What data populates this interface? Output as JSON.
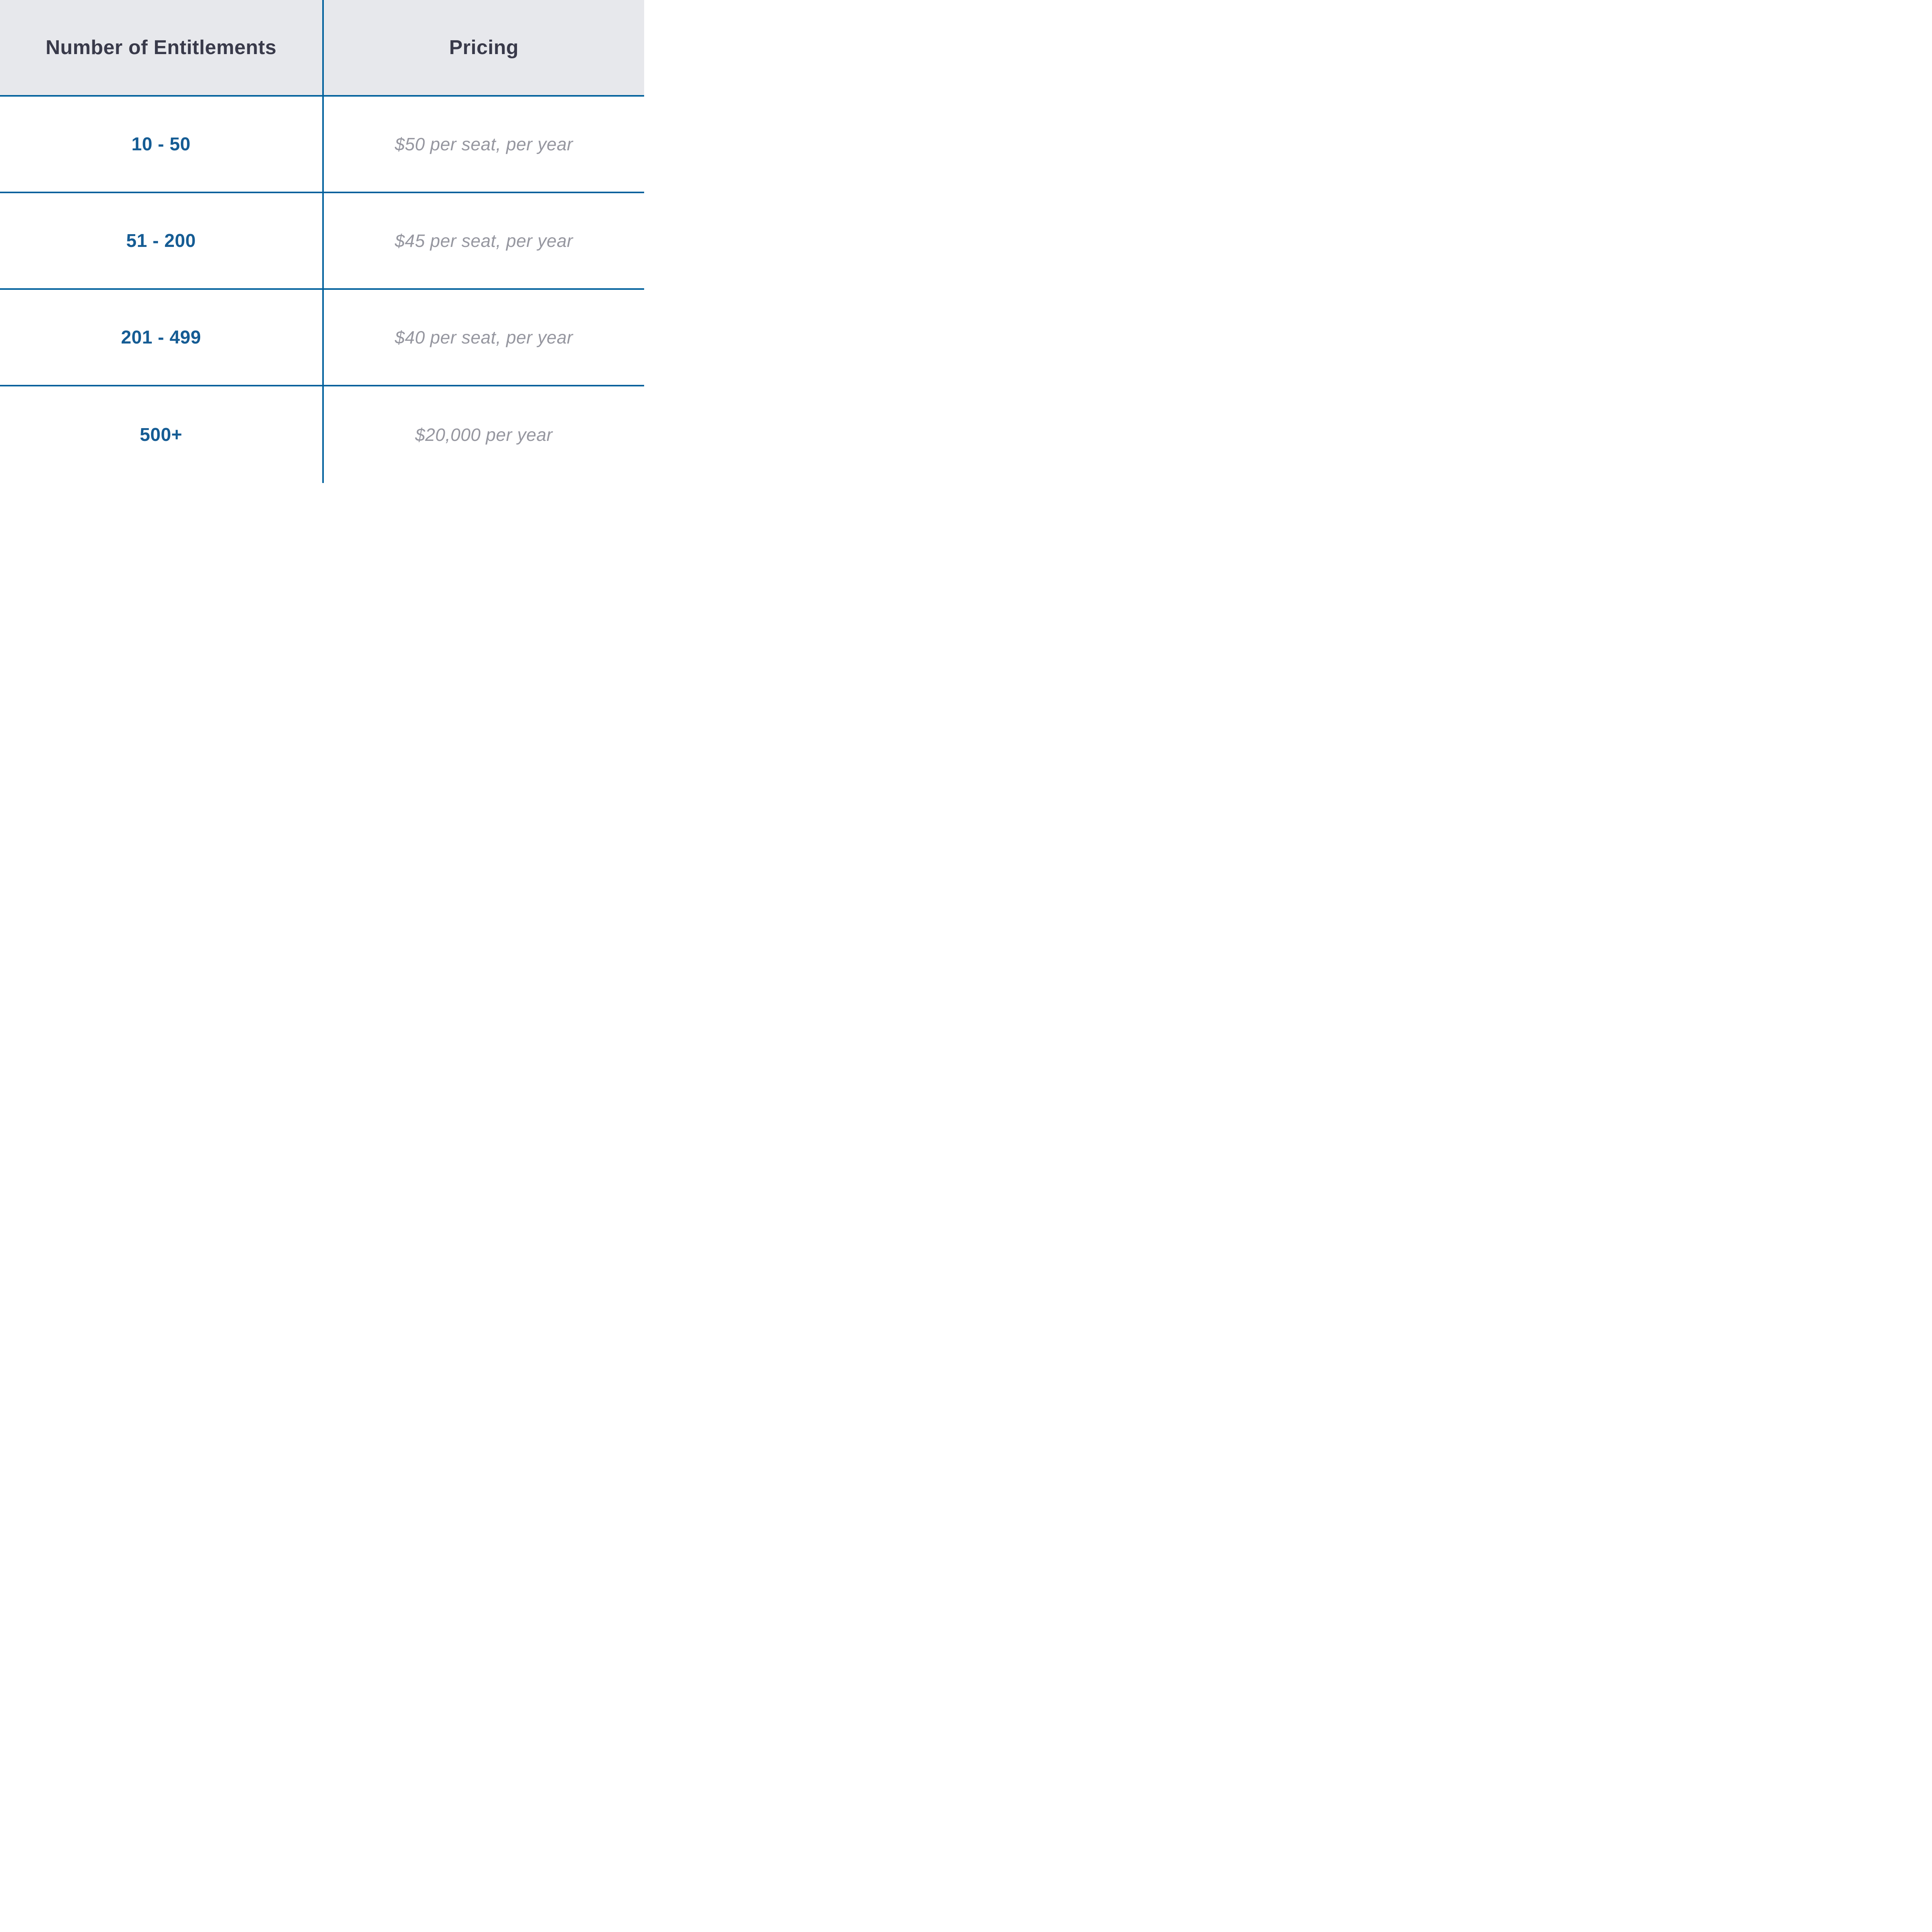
{
  "table": {
    "columns": [
      {
        "label": "Number of Entitlements"
      },
      {
        "label": "Pricing"
      }
    ],
    "rows": [
      {
        "range": "10 - 50",
        "pricing": "$50 per seat, per year"
      },
      {
        "range": "51 - 200",
        "pricing": "$45 per seat, per year"
      },
      {
        "range": "201 - 499",
        "pricing": "$40 per seat, per year"
      },
      {
        "range": "500+",
        "pricing": "$20,000 per year"
      }
    ]
  },
  "colors": {
    "border_blue": "#00609c",
    "header_background": "#e7e8ec",
    "header_text": "#393a4a",
    "range_text": "#155c94",
    "pricing_text": "#9697a0",
    "body_background": "#ffffff"
  },
  "chart_data": {
    "type": "table",
    "columns": [
      "Number of Entitlements",
      "Pricing"
    ],
    "rows": [
      [
        "10 - 50",
        "$50 per seat, per year"
      ],
      [
        "51 - 200",
        "$45 per seat, per year"
      ],
      [
        "201 - 499",
        "$40 per seat, per year"
      ],
      [
        "500+",
        "$20,000 per year"
      ]
    ],
    "title": "",
    "legend": "none",
    "grid": "blue rules between rows and between the two columns"
  }
}
